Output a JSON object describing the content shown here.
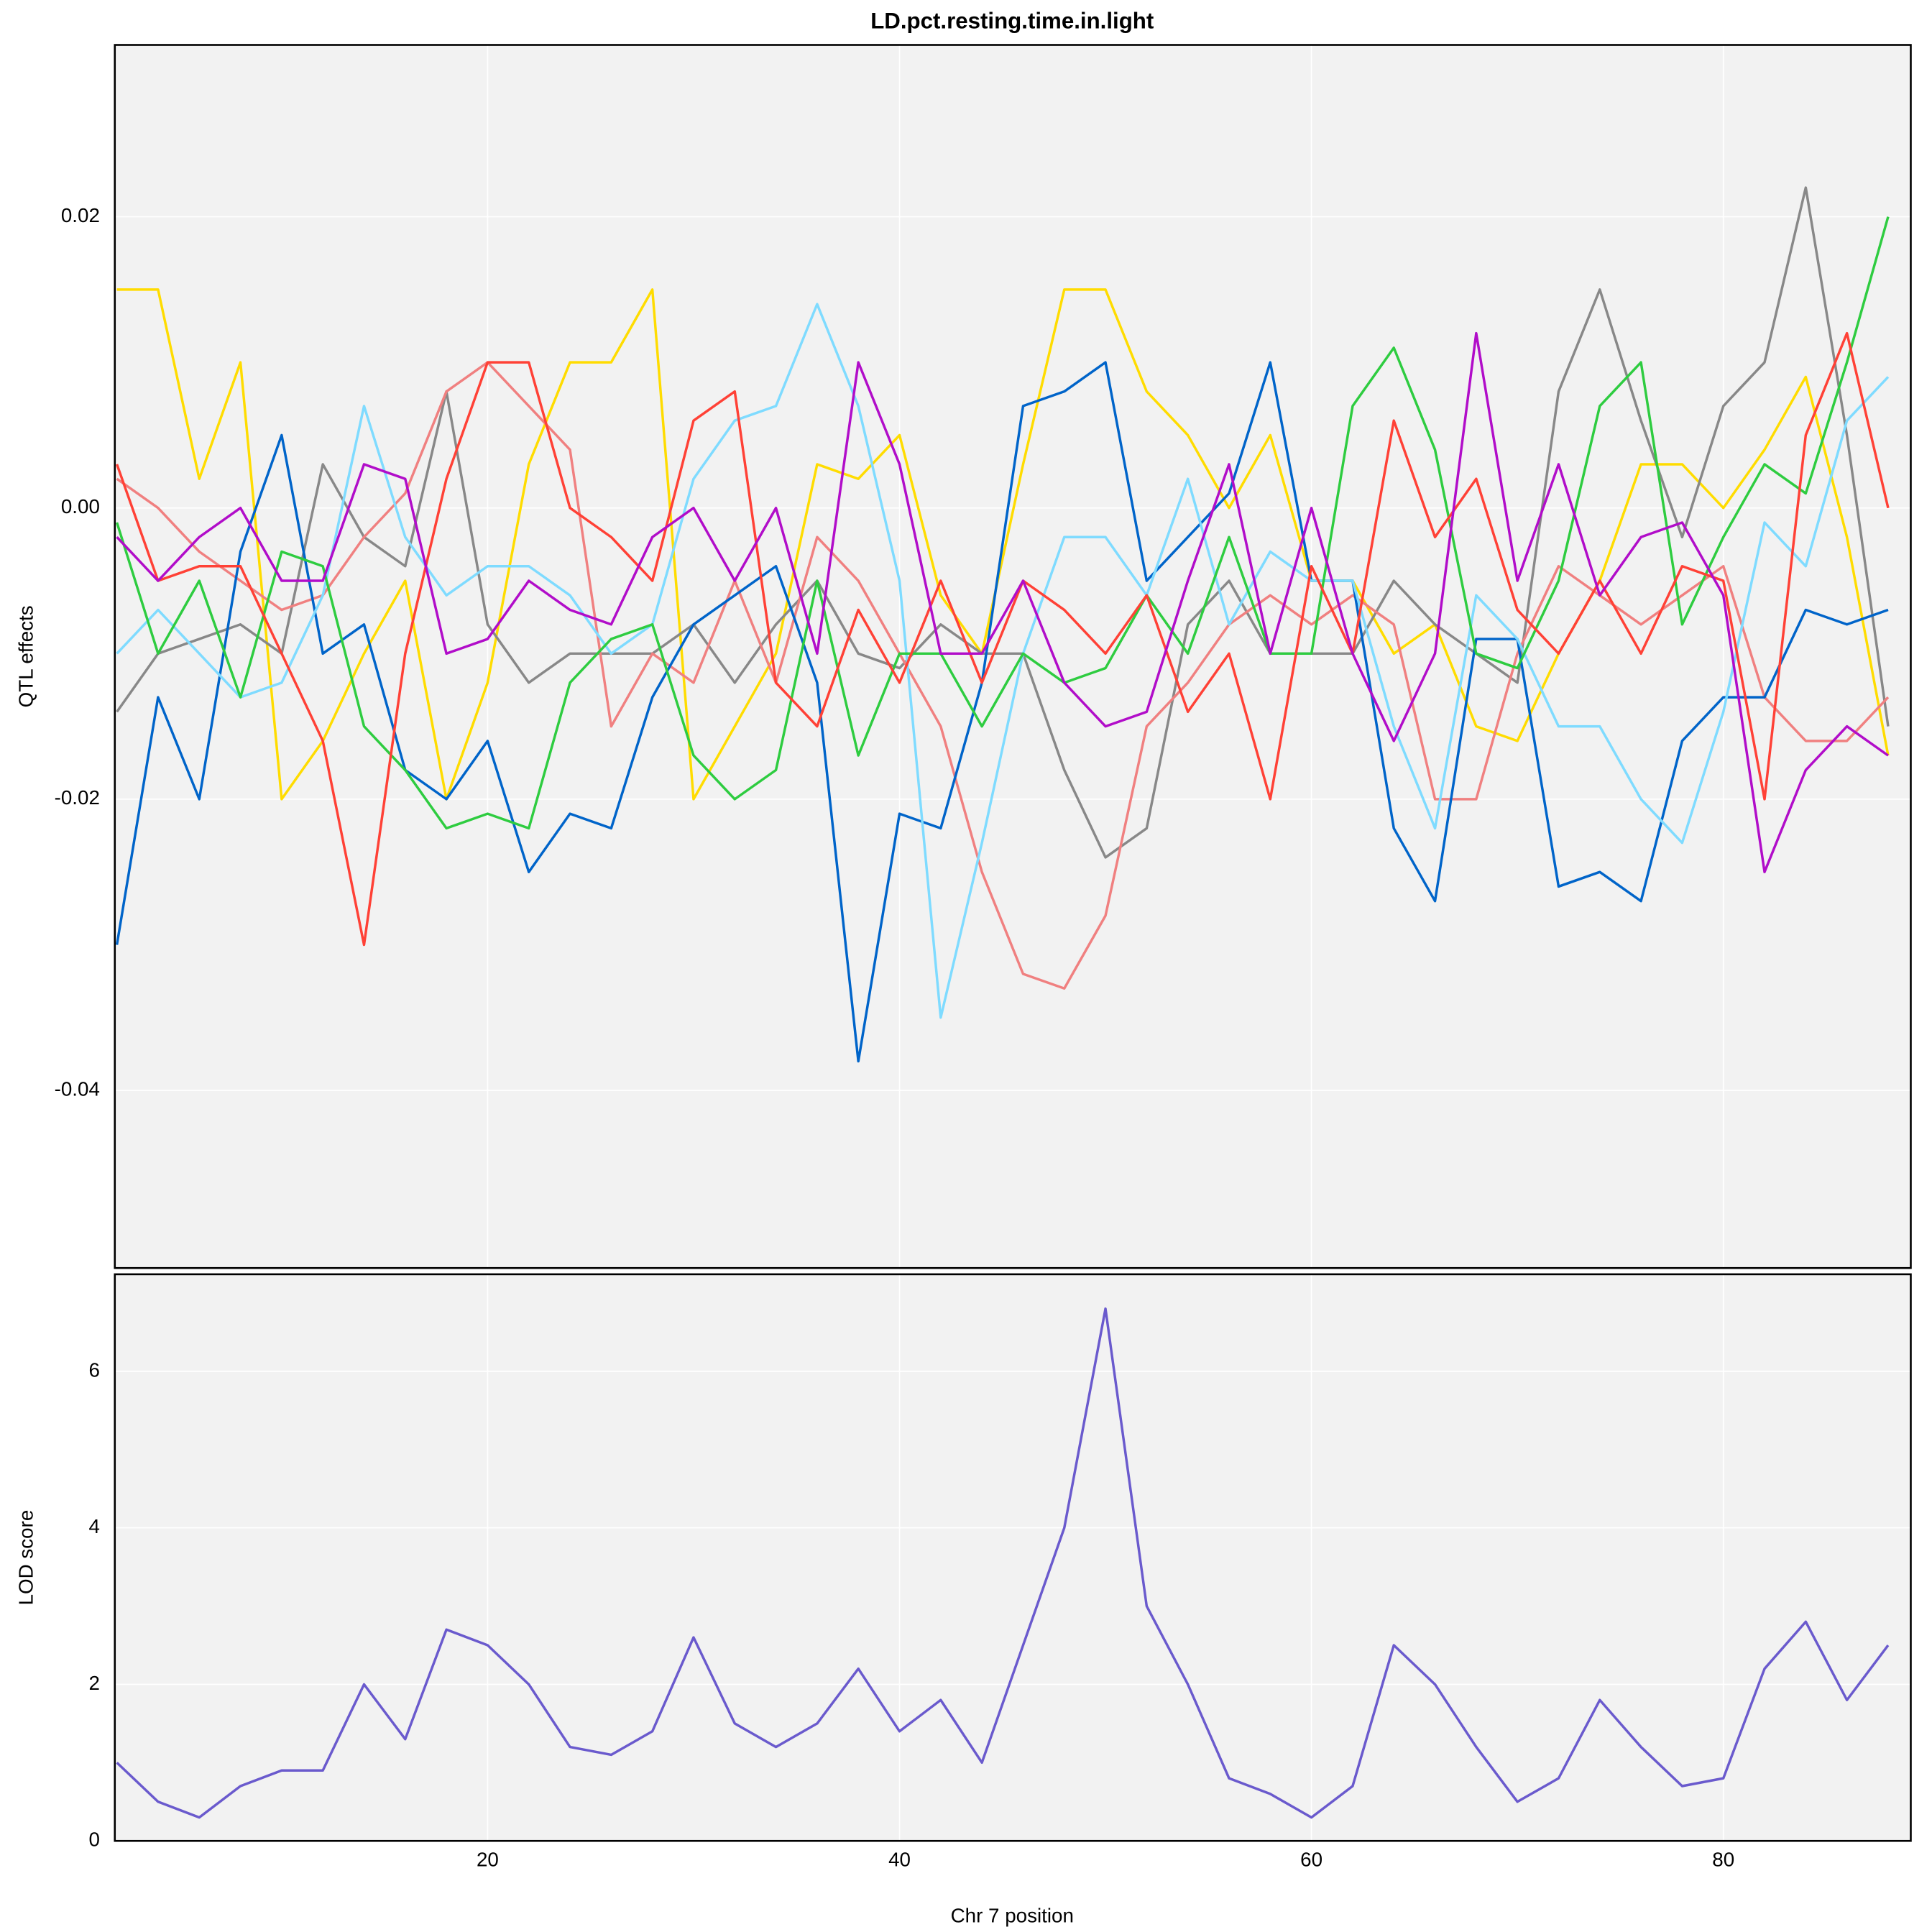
{
  "chart_data": [
    {
      "type": "line",
      "title": "LD.pct.resting.time.in.light",
      "y_label": "QTL effects",
      "x": [
        2,
        4,
        6,
        8,
        10,
        12,
        14,
        16,
        18,
        20,
        22,
        24,
        26,
        28,
        30,
        32,
        34,
        36,
        38,
        40,
        42,
        44,
        46,
        48,
        50,
        52,
        54,
        56,
        58,
        60,
        62,
        64,
        66,
        68,
        70,
        72,
        74,
        76,
        78,
        80,
        82,
        84,
        86,
        88
      ],
      "xlim": [
        1.9,
        89.1
      ],
      "xticks": [
        20,
        40,
        60,
        80
      ],
      "ylim": [
        -0.0522,
        0.0318
      ],
      "yticks": [
        0.02,
        {
          "value": 0,
          "label": "0.00"
        },
        -0.02,
        -0.04
      ],
      "grid": true,
      "series": [
        {
          "color": "#FFDC00",
          "values": [
            0.015,
            0.015,
            0.002,
            0.01,
            -0.02,
            -0.016,
            -0.01,
            -0.005,
            -0.02,
            -0.012,
            0.003,
            0.01,
            0.01,
            0.015,
            -0.02,
            -0.015,
            -0.01,
            0.003,
            0.002,
            0.005,
            -0.006,
            -0.01,
            0.003,
            0.015,
            0.015,
            0.008,
            0.005,
            0.0,
            0.005,
            -0.005,
            -0.005,
            -0.01,
            -0.008,
            -0.015,
            -0.016,
            -0.01,
            -0.005,
            0.003,
            0.003,
            0.0,
            0.004,
            0.009,
            -0.002,
            -0.017
          ]
        },
        {
          "color": "#888888",
          "values": [
            -0.014,
            -0.01,
            -0.009,
            -0.008,
            -0.01,
            0.003,
            -0.002,
            -0.004,
            0.008,
            -0.008,
            -0.012,
            -0.01,
            -0.01,
            -0.01,
            -0.008,
            -0.012,
            -0.008,
            -0.005,
            -0.01,
            -0.011,
            -0.008,
            -0.01,
            -0.01,
            -0.018,
            -0.024,
            -0.022,
            -0.008,
            -0.005,
            -0.01,
            -0.01,
            -0.01,
            -0.005,
            -0.008,
            -0.01,
            -0.012,
            0.008,
            0.015,
            0.006,
            -0.002,
            0.007,
            0.01,
            0.022,
            0.005,
            -0.015
          ]
        },
        {
          "color": "#F08080",
          "values": [
            0.002,
            0.0,
            -0.003,
            -0.005,
            -0.007,
            -0.006,
            -0.002,
            0.001,
            0.008,
            0.01,
            0.007,
            0.004,
            -0.015,
            -0.01,
            -0.012,
            -0.005,
            -0.012,
            -0.002,
            -0.005,
            -0.01,
            -0.015,
            -0.025,
            -0.032,
            -0.033,
            -0.028,
            -0.015,
            -0.012,
            -0.008,
            -0.006,
            -0.008,
            -0.006,
            -0.008,
            -0.02,
            -0.02,
            -0.01,
            -0.004,
            -0.006,
            -0.008,
            -0.006,
            -0.004,
            -0.013,
            -0.016,
            -0.016,
            -0.013
          ]
        },
        {
          "color": "#0064C9",
          "values": [
            -0.03,
            -0.013,
            -0.02,
            -0.003,
            0.005,
            -0.01,
            -0.008,
            -0.018,
            -0.02,
            -0.016,
            -0.025,
            -0.021,
            -0.022,
            -0.013,
            -0.008,
            -0.006,
            -0.004,
            -0.012,
            -0.038,
            -0.021,
            -0.022,
            -0.012,
            0.007,
            0.008,
            0.01,
            -0.005,
            -0.002,
            0.001,
            0.01,
            -0.005,
            -0.005,
            -0.022,
            -0.027,
            -0.009,
            -0.009,
            -0.026,
            -0.025,
            -0.027,
            -0.016,
            -0.013,
            -0.013,
            -0.007,
            -0.008,
            -0.007
          ]
        },
        {
          "color": "#7FDBFF",
          "values": [
            -0.01,
            -0.007,
            -0.01,
            -0.013,
            -0.012,
            -0.006,
            0.007,
            -0.002,
            -0.006,
            -0.004,
            -0.004,
            -0.006,
            -0.01,
            -0.008,
            0.002,
            0.006,
            0.007,
            0.014,
            0.007,
            -0.005,
            -0.035,
            -0.023,
            -0.01,
            -0.002,
            -0.002,
            -0.006,
            0.002,
            -0.008,
            -0.003,
            -0.005,
            -0.005,
            -0.015,
            -0.022,
            -0.006,
            -0.009,
            -0.015,
            -0.015,
            -0.02,
            -0.023,
            -0.014,
            -0.001,
            -0.004,
            0.006,
            0.009
          ]
        },
        {
          "color": "#2ECC40",
          "values": [
            -0.001,
            -0.01,
            -0.005,
            -0.013,
            -0.003,
            -0.004,
            -0.015,
            -0.018,
            -0.022,
            -0.021,
            -0.022,
            -0.012,
            -0.009,
            -0.008,
            -0.017,
            -0.02,
            -0.018,
            -0.005,
            -0.017,
            -0.01,
            -0.01,
            -0.015,
            -0.01,
            -0.012,
            -0.011,
            -0.006,
            -0.01,
            -0.002,
            -0.01,
            -0.01,
            0.007,
            0.011,
            0.004,
            -0.01,
            -0.011,
            -0.005,
            0.007,
            0.01,
            -0.008,
            -0.002,
            0.003,
            0.001,
            0.01,
            0.02
          ]
        },
        {
          "color": "#FF4136",
          "values": [
            0.003,
            -0.005,
            -0.004,
            -0.004,
            -0.01,
            -0.016,
            -0.03,
            -0.01,
            0.002,
            0.01,
            0.01,
            0.0,
            -0.002,
            -0.005,
            0.006,
            0.008,
            -0.012,
            -0.015,
            -0.007,
            -0.012,
            -0.005,
            -0.012,
            -0.005,
            -0.007,
            -0.01,
            -0.006,
            -0.014,
            -0.01,
            -0.02,
            -0.004,
            -0.01,
            0.006,
            -0.002,
            0.002,
            -0.007,
            -0.01,
            -0.005,
            -0.01,
            -0.004,
            -0.005,
            -0.02,
            0.005,
            0.012,
            0.0
          ]
        },
        {
          "color": "#B10DC9",
          "values": [
            -0.002,
            -0.005,
            -0.002,
            0.0,
            -0.005,
            -0.005,
            0.003,
            0.002,
            -0.01,
            -0.009,
            -0.005,
            -0.007,
            -0.008,
            -0.002,
            0.0,
            -0.005,
            0.0,
            -0.01,
            0.01,
            0.003,
            -0.01,
            -0.01,
            -0.005,
            -0.012,
            -0.015,
            -0.014,
            -0.005,
            0.003,
            -0.01,
            0.0,
            -0.01,
            -0.016,
            -0.01,
            0.012,
            -0.005,
            0.003,
            -0.006,
            -0.002,
            -0.001,
            -0.006,
            -0.025,
            -0.018,
            -0.015,
            -0.017
          ]
        }
      ]
    },
    {
      "type": "line",
      "x_label": "Chr 7 position",
      "y_label": "LOD score",
      "x": [
        2,
        4,
        6,
        8,
        10,
        12,
        14,
        16,
        18,
        20,
        22,
        24,
        26,
        28,
        30,
        32,
        34,
        36,
        38,
        40,
        42,
        44,
        46,
        48,
        50,
        52,
        54,
        56,
        58,
        60,
        62,
        64,
        66,
        68,
        70,
        72,
        74,
        76,
        78,
        80,
        82,
        84,
        86,
        88
      ],
      "values": [
        1.0,
        0.5,
        0.3,
        0.7,
        0.9,
        0.9,
        2.0,
        1.3,
        2.7,
        2.5,
        2.0,
        1.2,
        1.1,
        1.4,
        2.6,
        1.5,
        1.2,
        1.5,
        2.2,
        1.4,
        1.8,
        1.0,
        2.5,
        4.0,
        6.8,
        3.0,
        2.0,
        0.8,
        0.6,
        0.3,
        0.7,
        2.5,
        2.0,
        1.2,
        0.5,
        0.8,
        1.8,
        1.2,
        0.7,
        0.8,
        2.2,
        2.8,
        1.8,
        2.5
      ],
      "color": "#6A5ACD",
      "xlim": [
        1.9,
        89.1
      ],
      "xticks": [
        20,
        40,
        60,
        80
      ],
      "ylim": [
        0,
        7.24
      ],
      "yticks": [
        0,
        2,
        4,
        6
      ],
      "grid": true
    }
  ]
}
